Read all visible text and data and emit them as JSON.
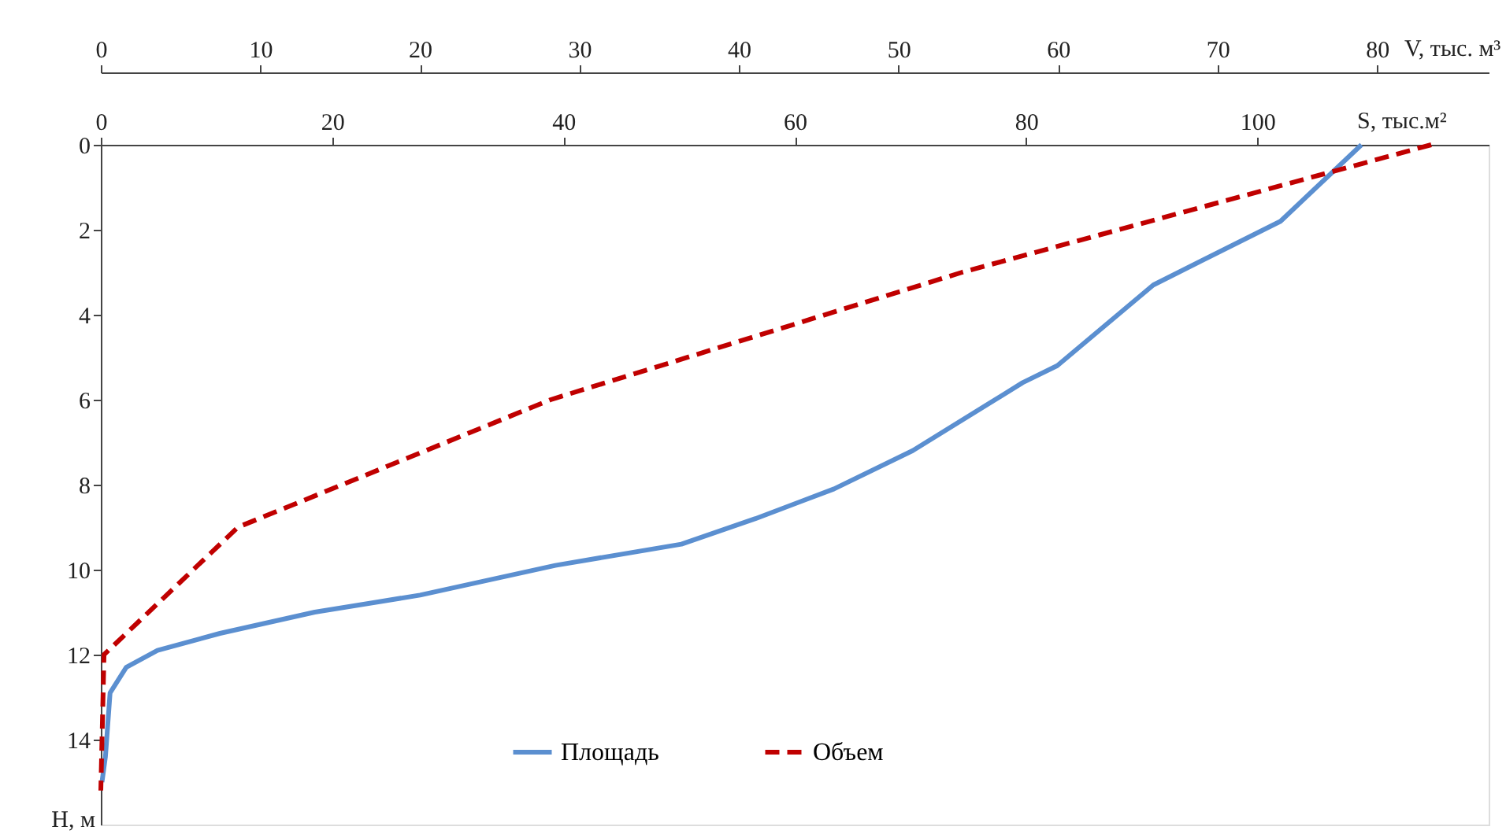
{
  "chart_data": {
    "type": "line",
    "xlabel": "S, тыс.м²",
    "x2label": "V, тыс. м³",
    "ylabel": "Н, м",
    "xlim": [
      0,
      120
    ],
    "xticks": [
      0,
      20,
      40,
      60,
      80,
      100
    ],
    "x2lim": [
      0,
      87
    ],
    "x2ticks": [
      0,
      10,
      20,
      30,
      40,
      50,
      60,
      70,
      80
    ],
    "ylim": [
      16,
      0
    ],
    "yticks": [
      0,
      2,
      4,
      6,
      8,
      10,
      12,
      14
    ],
    "grid": false,
    "legend": "bottom",
    "marker": "none",
    "series": [
      {
        "name": "Площадь",
        "color": "#5b8fd0",
        "line_style": "solid",
        "x": [
          109,
          102,
          91,
          82.7,
          79.7,
          70.2,
          63.4,
          56.6,
          50.2,
          39.3,
          27.6,
          18.5,
          10.3,
          4.9,
          2.2,
          0.8,
          0.4,
          0.1
        ],
        "values": [
          0,
          1.8,
          3.3,
          5.2,
          5.6,
          7.2,
          8.1,
          8.8,
          9.4,
          9.9,
          10.6,
          11.0,
          11.5,
          11.9,
          12.3,
          12.9,
          14.4,
          15.0
        ]
      },
      {
        "name": "Объем",
        "color": "#c00000",
        "line_style": "dashed",
        "axis": "x2",
        "x": [
          83.4,
          54,
          28.2,
          8.6,
          0.2,
          0
        ],
        "values": [
          0,
          3,
          6,
          9,
          12,
          15.2
        ]
      }
    ]
  }
}
